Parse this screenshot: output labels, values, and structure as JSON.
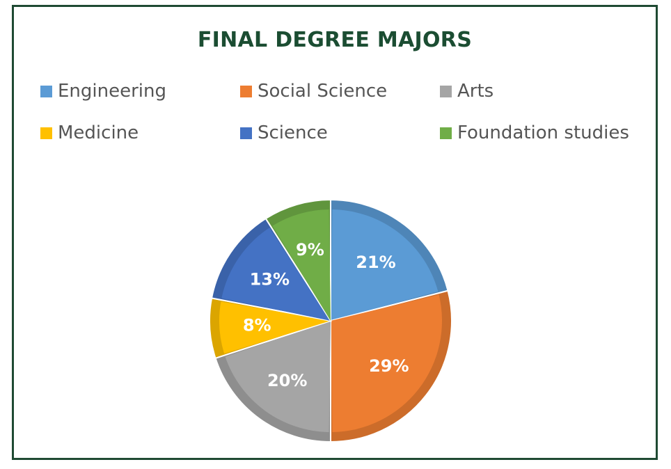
{
  "chart_data": {
    "type": "pie",
    "title": "FINAL DEGREE MAJORS",
    "legend_placement": "top",
    "categories": [
      "Engineering",
      "Social Science",
      "Arts",
      "Medicine",
      "Science",
      "Foundation studies"
    ],
    "values": [
      21,
      29,
      20,
      8,
      13,
      9
    ],
    "labels": [
      "21%",
      "29%",
      "20%",
      "8%",
      "13%",
      "9%"
    ],
    "colors": [
      "#5b9bd5",
      "#ed7d31",
      "#a5a5a5",
      "#ffc000",
      "#4472c4",
      "#70ad47"
    ]
  }
}
